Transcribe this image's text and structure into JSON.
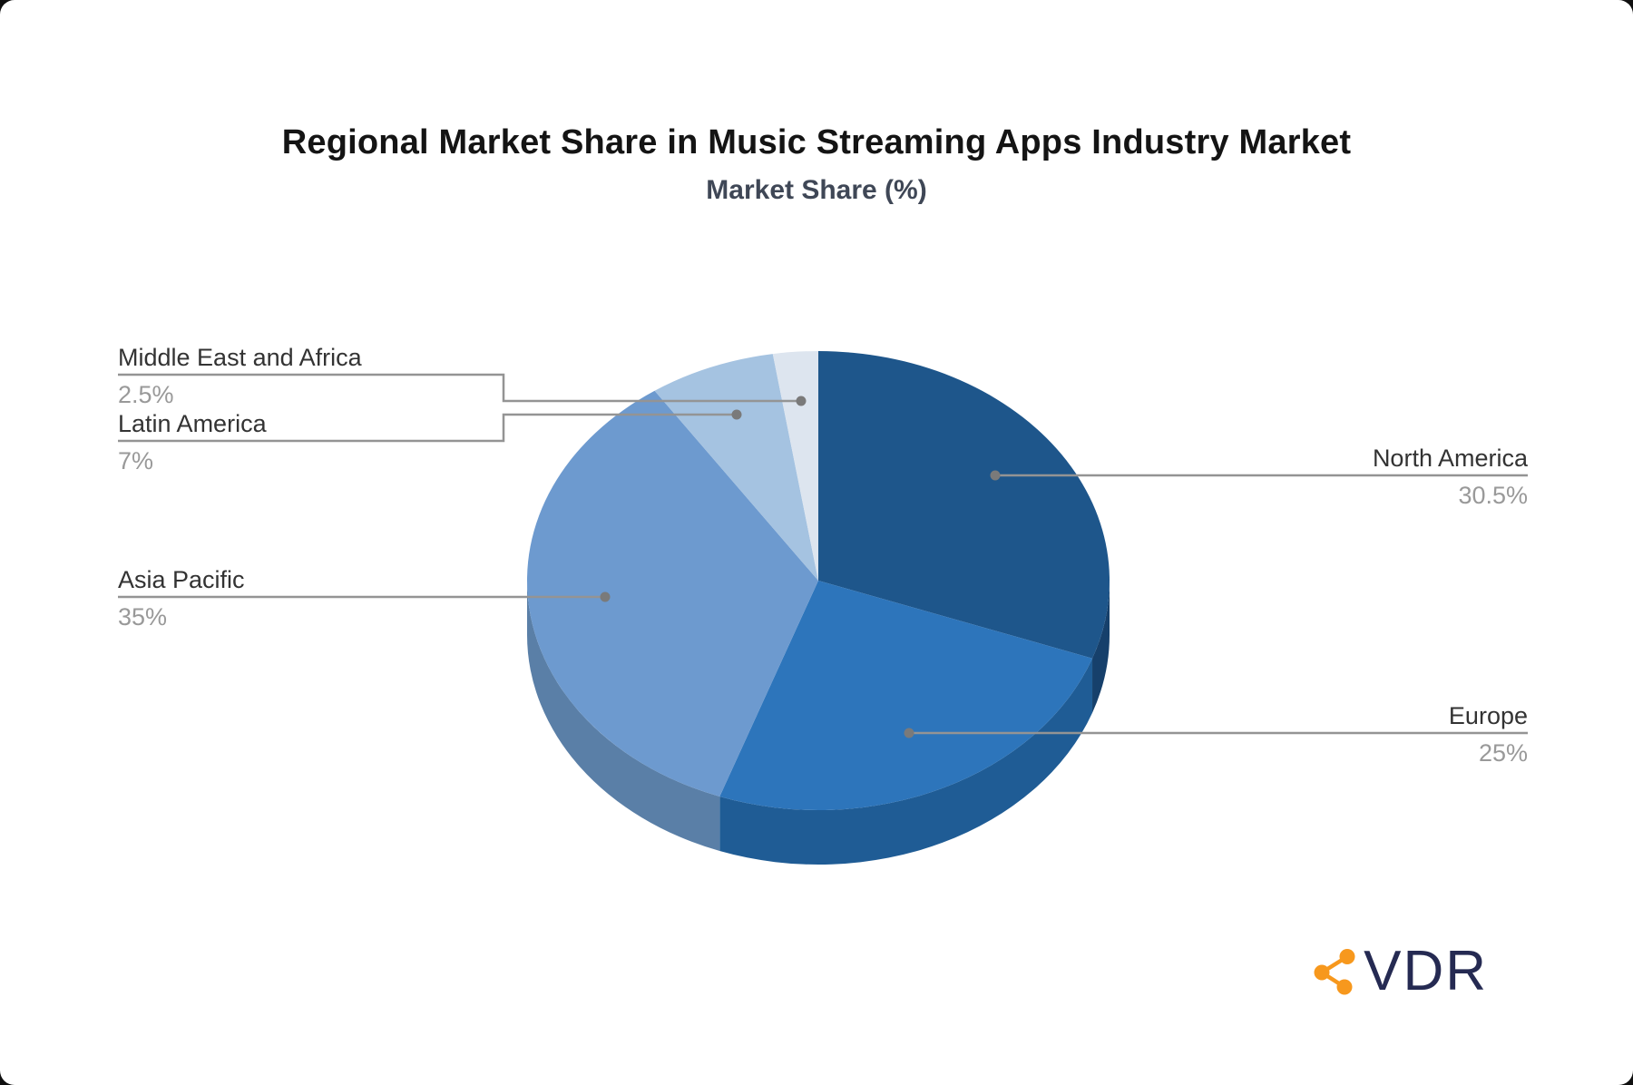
{
  "page": {
    "background": "#ffffff"
  },
  "chart_data": {
    "type": "pie",
    "title": "Regional Market Share in Music Streaming Apps Industry Market",
    "subtitle": "Market Share (%)",
    "unit": "%",
    "labels": [
      "North America",
      "Europe",
      "Asia Pacific",
      "Latin America",
      "Middle East and Africa"
    ],
    "values": [
      30.5,
      25,
      35,
      7,
      2.5
    ],
    "display_values": [
      "30.5%",
      "25%",
      "35%",
      "7%",
      "2.5%"
    ],
    "colors": [
      "#1E568B",
      "#2D75BB",
      "#6D9ACF",
      "#A5C3E1",
      "#DDE5EF"
    ],
    "side_colors": [
      "#16406B",
      "#1F5C95",
      "#5A7FA7",
      "#8FB0CE",
      "#C5D2E2"
    ],
    "start_angle": "12-oclock",
    "direction": "clockwise",
    "style": "3d",
    "legend": "callout-labels",
    "label_color": "#333333",
    "value_color": "#999999",
    "leader_line_color": "#949494",
    "leader_dot_color": "#7A7A7A"
  },
  "branding": {
    "logo_text": "VDR",
    "logo_text_color": "#252A52",
    "logo_icon": "share-network-icon",
    "logo_icon_color": "#F7981D"
  }
}
